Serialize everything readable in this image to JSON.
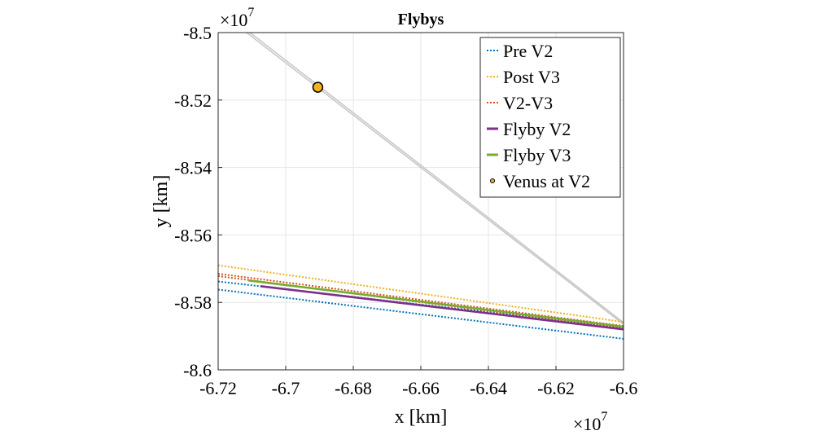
{
  "chart_data": {
    "type": "line",
    "title": "Flybys",
    "xlabel": "x [km]",
    "ylabel": "y [km]",
    "x_exponent_label": "×10",
    "x_exponent_power": "7",
    "y_exponent_label": "×10",
    "y_exponent_power": "7",
    "xlim": [
      -6.72,
      -6.6
    ],
    "ylim": [
      -8.6,
      -8.5
    ],
    "xticks": [
      -6.72,
      -6.7,
      -6.68,
      -6.66,
      -6.64,
      -6.62,
      -6.6
    ],
    "xtick_labels": [
      "-6.72",
      "-6.7",
      "-6.68",
      "-6.66",
      "-6.64",
      "-6.62",
      "-6.6"
    ],
    "yticks": [
      -8.6,
      -8.58,
      -8.56,
      -8.54,
      -8.52,
      -8.5
    ],
    "ytick_labels": [
      "-8.6",
      "-8.58",
      "-8.56",
      "-8.54",
      "-8.52",
      "-8.5"
    ],
    "grid": true,
    "legend_position": "top-right",
    "venus_orbit": {
      "color": "#c8c8c8",
      "lines": [
        {
          "x": [
            -6.7135,
            -6.6
          ],
          "y": [
            -8.4985,
            -8.5865
          ]
        },
        {
          "x": [
            -6.7125,
            -6.6
          ],
          "y": [
            -8.4985,
            -8.586
          ]
        }
      ]
    },
    "series": [
      {
        "name": "Pre V2",
        "color": "#0072BD",
        "style": "dotted",
        "lines": [
          {
            "x": [
              -6.72,
              -6.6
            ],
            "y": [
              -8.5738,
              -8.5875
            ]
          },
          {
            "x": [
              -6.72,
              -6.6
            ],
            "y": [
              -8.5762,
              -8.5908
            ]
          }
        ]
      },
      {
        "name": "Post V3",
        "color": "#EDB120",
        "style": "dotted",
        "lines": [
          {
            "x": [
              -6.72,
              -6.6
            ],
            "y": [
              -8.569,
              -8.5858
            ]
          }
        ]
      },
      {
        "name": "V2-V3",
        "color": "#D95319",
        "style": "dotted",
        "lines": [
          {
            "x": [
              -6.72,
              -6.6
            ],
            "y": [
              -8.5715,
              -8.587
            ]
          },
          {
            "x": [
              -6.72,
              -6.6
            ],
            "y": [
              -8.5722,
              -8.5877
            ]
          }
        ]
      },
      {
        "name": "Flyby V2",
        "color": "#7E2F8E",
        "style": "solid",
        "lines": [
          {
            "x": [
              -6.7075,
              -6.6
            ],
            "y": [
              -8.5752,
              -8.588
            ]
          }
        ]
      },
      {
        "name": "Flyby V3",
        "color": "#77AC30",
        "style": "solid",
        "lines": [
          {
            "x": [
              -6.711,
              -6.6
            ],
            "y": [
              -8.5735,
              -8.5872
            ]
          }
        ]
      }
    ],
    "points": [
      {
        "name": "Venus at V2",
        "x": -6.6905,
        "y": -8.5162,
        "color": "#F6B21B",
        "edge": "#000000"
      }
    ]
  }
}
